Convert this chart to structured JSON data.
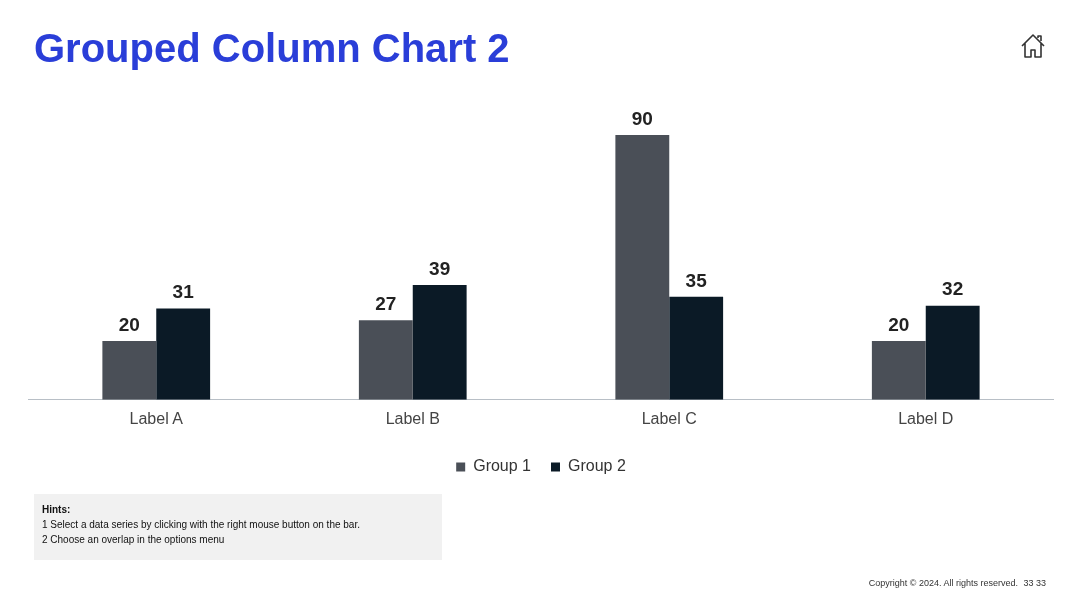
{
  "chart_data": {
    "type": "bar",
    "title": "Grouped Column Chart 2",
    "categories": [
      "Label A",
      "Label B",
      "Label C",
      "Label D"
    ],
    "series": [
      {
        "name": "Group 1",
        "color": "#4a4f57",
        "values": [
          20,
          27,
          90,
          20
        ]
      },
      {
        "name": "Group 2",
        "color": "#0b1a26",
        "values": [
          31,
          39,
          35,
          32
        ]
      }
    ],
    "data_labels": true,
    "grid": false,
    "legend": "bottom",
    "annotations": [
      "Hints:",
      "1  Select a data series by clicking with the right mouse button on the bar.",
      "2  Choose an overlap in the options menu",
      "Copyright © 2024. All rights reserved.",
      "33 33"
    ]
  }
}
